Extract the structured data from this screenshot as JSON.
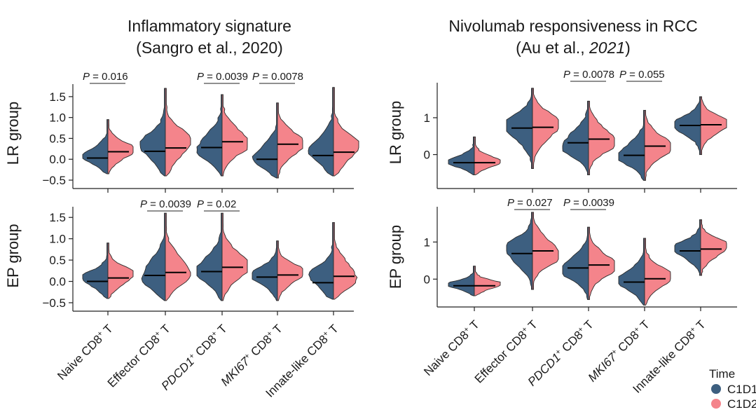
{
  "colors": {
    "c1": "#3d5f80",
    "c2": "#f4848b",
    "outline": "#2b2b2b",
    "median": "#000000"
  },
  "legend": {
    "title": "Time",
    "items": [
      "C1D1",
      "C1D2"
    ]
  },
  "categories": [
    "Naive CD8<sup>+</sup> T",
    "Effector CD8<sup>+</sup> T",
    "<i>PDCD1</i><sup>+</sup> CD8<sup>+</sup> T",
    "<i>MKI67</i><sup>+</sup> CD8<sup>+</sup> T",
    "Innate-like CD8<sup>+</sup> T"
  ],
  "chart_data": [
    {
      "type": "violin",
      "title": [
        "Inflammatory signature",
        "(Sangro et al., 2020)"
      ],
      "panels": [
        {
          "ylabel": "LR group",
          "yticks": [
            "−0.5",
            "0.0",
            "0.5",
            "1.0",
            "1.5"
          ],
          "ylim": [
            -0.55,
            1.8
          ],
          "medians": [
            [
              0.03,
              0.18
            ],
            [
              0.19,
              0.27
            ],
            [
              0.28,
              0.42
            ],
            [
              0.0,
              0.36
            ],
            [
              0.09,
              0.17
            ]
          ],
          "ranges": [
            [
              -0.35,
              0.95
            ],
            [
              -0.4,
              1.7
            ],
            [
              -0.4,
              1.55
            ],
            [
              -0.45,
              1.35
            ],
            [
              -0.4,
              1.72
            ]
          ],
          "annotations": [
            {
              "cat": 0,
              "label": "P = 0.016"
            },
            {
              "cat": 2,
              "label": "P = 0.0039"
            },
            {
              "cat": 3,
              "label": "P = 0.0078"
            }
          ]
        },
        {
          "ylabel": "EP group",
          "yticks": [
            "−0.5",
            "0.0",
            "0.5",
            "1.0",
            "1.5"
          ],
          "ylim": [
            -0.55,
            1.75
          ],
          "medians": [
            [
              0.0,
              0.08
            ],
            [
              0.14,
              0.21
            ],
            [
              0.23,
              0.33
            ],
            [
              0.1,
              0.15
            ],
            [
              -0.03,
              0.12
            ]
          ],
          "ranges": [
            [
              -0.4,
              0.9
            ],
            [
              -0.45,
              1.6
            ],
            [
              -0.45,
              1.6
            ],
            [
              -0.45,
              0.95
            ],
            [
              -0.42,
              1.38
            ]
          ],
          "annotations": [
            {
              "cat": 1,
              "label": "P = 0.0039"
            },
            {
              "cat": 2,
              "label": "P = 0.02"
            }
          ]
        }
      ]
    },
    {
      "type": "violin",
      "title": [
        "Nivolumab responsiveness in RCC",
        "(Au et al., 2021)"
      ],
      "panels": [
        {
          "ylabel": "LR group",
          "yticks": [
            "0",
            "1"
          ],
          "ylim": [
            -0.75,
            1.95
          ],
          "medians": [
            [
              -0.22,
              -0.22
            ],
            [
              0.72,
              0.74
            ],
            [
              0.32,
              0.42
            ],
            [
              -0.02,
              0.23
            ],
            [
              0.79,
              0.81
            ]
          ],
          "ranges": [
            [
              -0.55,
              0.48
            ],
            [
              -0.38,
              1.8
            ],
            [
              -0.55,
              1.45
            ],
            [
              -0.7,
              1.2
            ],
            [
              0.0,
              1.57
            ]
          ],
          "annotations": [
            {
              "cat": 2,
              "label": "P = 0.0078"
            },
            {
              "cat": 3,
              "label": "P = 0.055"
            }
          ]
        },
        {
          "ylabel": "EP group",
          "yticks": [
            "0",
            "1"
          ],
          "ylim": [
            -0.75,
            1.95
          ],
          "medians": [
            [
              -0.18,
              -0.18
            ],
            [
              0.69,
              0.76
            ],
            [
              0.3,
              0.38
            ],
            [
              -0.08,
              0.01
            ],
            [
              0.76,
              0.81
            ]
          ],
          "ranges": [
            [
              -0.45,
              0.35
            ],
            [
              -0.28,
              1.8
            ],
            [
              -0.55,
              1.4
            ],
            [
              -0.7,
              1.1
            ],
            [
              0.1,
              1.6
            ]
          ],
          "annotations": [
            {
              "cat": 1,
              "label": "P = 0.027"
            },
            {
              "cat": 2,
              "label": "P = 0.0039"
            }
          ]
        }
      ]
    }
  ]
}
